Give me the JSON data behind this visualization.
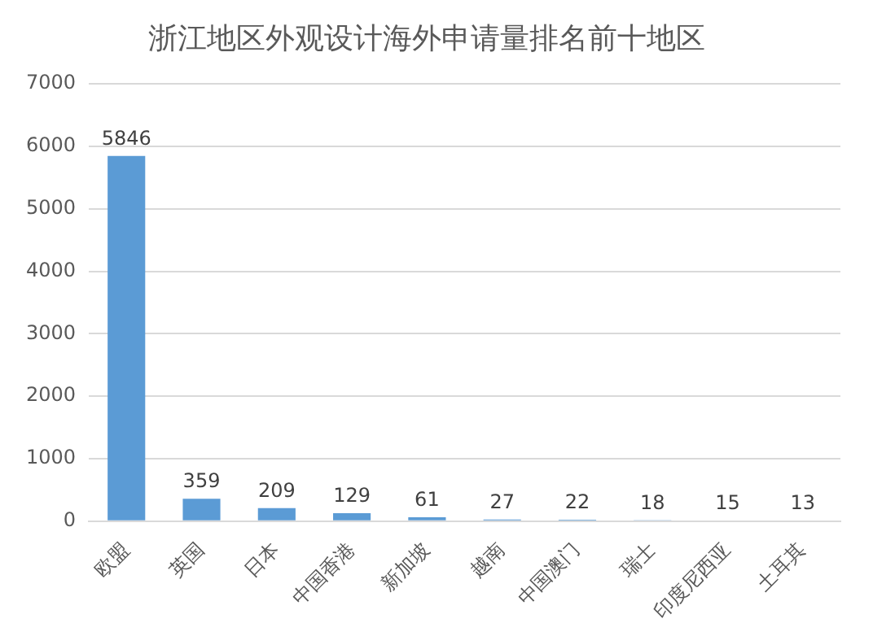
{
  "chart_data": {
    "type": "bar",
    "title": "浙江地区外观设计海外申请量排名前十地区",
    "categories": [
      "欧盟",
      "英国",
      "日本",
      "中国香港",
      "新加坡",
      "越南",
      "中国澳门",
      "瑞士",
      "印度尼西亚",
      "土耳其"
    ],
    "values": [
      5846,
      359,
      209,
      129,
      61,
      27,
      22,
      18,
      15,
      13
    ],
    "color": "#5b9bd5",
    "ylim": [
      0,
      7000
    ],
    "yticks": [
      0,
      1000,
      2000,
      3000,
      4000,
      5000,
      6000,
      7000
    ],
    "grid": "y",
    "data_labels": true,
    "legend": false
  }
}
